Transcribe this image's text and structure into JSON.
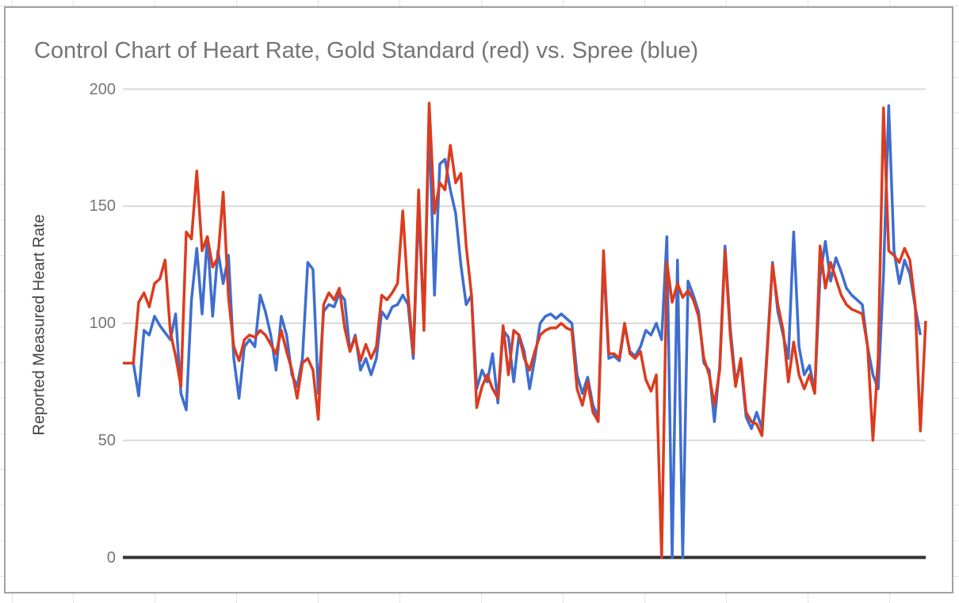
{
  "chart_data": {
    "type": "line",
    "title": "Control Chart of Heart Rate, Gold Standard (red) vs. Spree (blue)",
    "ylabel": "Reported Measured Heart Rate",
    "xlabel": "",
    "ylim": [
      0,
      200
    ],
    "grid": true,
    "legend_position": "none",
    "x_axis": "sample index (unlabeled, 153 consecutive measurements)",
    "x_count": 153,
    "yticks": [
      {
        "label": "200",
        "value": 200
      },
      {
        "label": "150",
        "value": 150
      },
      {
        "label": "100",
        "value": 100
      },
      {
        "label": "50",
        "value": 50
      },
      {
        "label": "0",
        "value": 0
      }
    ],
    "series": [
      {
        "name": "Gold Standard",
        "color": "#dc3c1e",
        "values": [
          83,
          83,
          83,
          109,
          113,
          107,
          117,
          119,
          127,
          96,
          86,
          73,
          139,
          136,
          165,
          131,
          137,
          124,
          128,
          156,
          111,
          90,
          84,
          93,
          95,
          94,
          97,
          95,
          91,
          87,
          97,
          88,
          80,
          68,
          83,
          85,
          80,
          59,
          108,
          113,
          110,
          115,
          98,
          88,
          94,
          84,
          91,
          85,
          90,
          112,
          110,
          113,
          117,
          148,
          112,
          87,
          157,
          97,
          194,
          147,
          160,
          157,
          176,
          160,
          164,
          133,
          112,
          64,
          73,
          78,
          72,
          68,
          99,
          78,
          97,
          95,
          85,
          80,
          88,
          95,
          97,
          98,
          98,
          100,
          98,
          97,
          72,
          65,
          75,
          62,
          58,
          131,
          87,
          87,
          85,
          100,
          87,
          85,
          88,
          76,
          71,
          78,
          0,
          126,
          109,
          117,
          111,
          114,
          110,
          103,
          85,
          78,
          65,
          80,
          131,
          95,
          73,
          85,
          62,
          58,
          57,
          52,
          88,
          125,
          108,
          97,
          75,
          92,
          78,
          72,
          78,
          70,
          133,
          115,
          126,
          119,
          112,
          108,
          106,
          105,
          104,
          90,
          50,
          85,
          192,
          131,
          129,
          126,
          132,
          127,
          108,
          54,
          101
        ]
      },
      {
        "name": "Spree",
        "color": "#3e6ed0",
        "values": [
          83,
          83,
          83,
          69,
          97,
          95,
          103,
          99,
          96,
          93,
          104,
          70,
          63,
          110,
          132,
          104,
          137,
          103,
          131,
          117,
          129,
          85,
          68,
          90,
          93,
          90,
          112,
          105,
          95,
          80,
          103,
          95,
          78,
          73,
          85,
          126,
          123,
          70,
          105,
          108,
          107,
          113,
          110,
          88,
          95,
          80,
          85,
          78,
          85,
          105,
          102,
          107,
          108,
          112,
          108,
          85,
          150,
          100,
          186,
          112,
          168,
          170,
          157,
          147,
          125,
          108,
          112,
          72,
          80,
          75,
          87,
          66,
          97,
          94,
          75,
          95,
          88,
          72,
          85,
          100,
          103,
          104,
          102,
          104,
          102,
          100,
          78,
          70,
          77,
          65,
          60,
          127,
          85,
          86,
          84,
          99,
          88,
          86,
          90,
          97,
          95,
          100,
          93,
          137,
          0,
          127,
          0,
          118,
          112,
          105,
          83,
          80,
          58,
          82,
          133,
          98,
          75,
          83,
          60,
          55,
          62,
          55,
          90,
          126,
          105,
          95,
          85,
          139,
          90,
          78,
          82,
          71,
          120,
          135,
          118,
          128,
          122,
          115,
          112,
          110,
          108,
          90,
          78,
          72,
          120,
          193,
          131,
          117,
          127,
          121,
          107,
          95,
          null
        ]
      }
    ],
    "style": {
      "grid_color": "#d9d9d9",
      "axis_color": "#333333",
      "title_color": "#757575",
      "tick_color": "#757575",
      "ylabel_color": "#424242",
      "line_width": 3.5
    }
  }
}
